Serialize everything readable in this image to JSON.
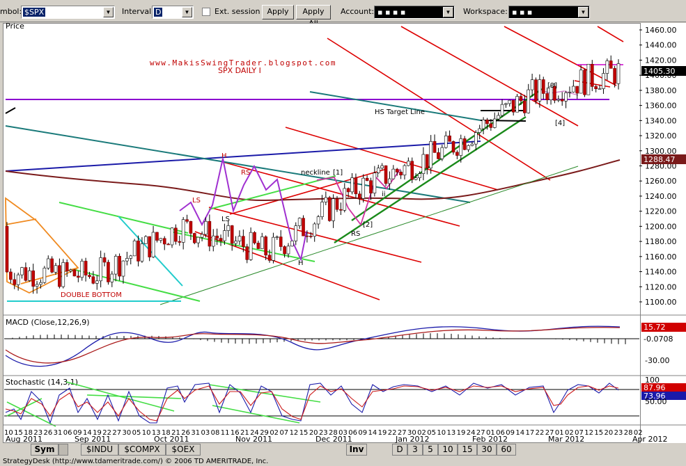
{
  "toolbar": {
    "symbol_label": "mbol:",
    "symbol_value": "$SPX",
    "interval_label": "Interval:",
    "interval_value": "D",
    "ext_session_label": "Ext. session",
    "apply_label": "Apply",
    "apply_all_label": "Apply All",
    "account_label": "Account:",
    "account_value": "▪ ▪ ▪ ▪",
    "workspace_label": "Workspace:",
    "workspace_value": "▪ ▪ ▪"
  },
  "chart": {
    "price_label": "Price",
    "blog_text": "www.MakisSwingTrader.blogspot.com",
    "chart_title": "SPX DAILY I",
    "double_bottom_text": "DOUBLE BOTTOM",
    "hs_target_text": "HS Target Line",
    "neckline_text": "neckline",
    "pattern_labels": [
      "H",
      "LS",
      "RS",
      "LS",
      "H",
      "RS",
      "[1]",
      "[2]",
      "[3]",
      "[4]",
      "i",
      "ii"
    ],
    "price_badges": {
      "last": "1405.30",
      "ma": "1288.47"
    },
    "macd_label": "MACD (Close,12,26,9)",
    "macd_badges": [
      "15.72",
      "-0.0708"
    ],
    "macd_ticks": [
      "-30.00"
    ],
    "stoch_label": "Stochastic (14,3,1)",
    "stoch_badges": [
      "87.96",
      "73.96"
    ],
    "stoch_ticks": [
      "100",
      "50.00"
    ],
    "x_day_labels": [
      "10",
      "15",
      "18",
      "23",
      "26",
      "31",
      "06",
      "09",
      "14",
      "19",
      "22",
      "27",
      "30",
      "05",
      "10",
      "13",
      "18",
      "21",
      "26",
      "31",
      "03",
      "08",
      "11",
      "16",
      "21",
      "24",
      "29",
      "02",
      "07",
      "12",
      "15",
      "20",
      "23",
      "28",
      "03",
      "06",
      "09",
      "14",
      "19",
      "22",
      "27",
      "30",
      "02",
      "05",
      "10",
      "13",
      "19",
      "24",
      "27",
      "01",
      "06",
      "09",
      "14",
      "17",
      "22",
      "27",
      "01",
      "02",
      "07",
      "12",
      "15",
      "20",
      "23",
      "28",
      "02"
    ],
    "x_month_labels": [
      "Aug 2011",
      "Sep 2011",
      "Oct 2011",
      "Nov 2011",
      "Dec 2011",
      "Jan 2012",
      "Feb 2012",
      "Mar 2012",
      "Apr 2012"
    ]
  },
  "chart_data": {
    "type": "candlestick",
    "title": "SPX DAILY I",
    "ylabel": "Price",
    "ylim": [
      1085,
      1470
    ],
    "yticks": [
      1100,
      1120,
      1140,
      1160,
      1180,
      1200,
      1220,
      1240,
      1260,
      1280,
      1300,
      1320,
      1340,
      1360,
      1380,
      1400,
      1420,
      1440,
      1460
    ],
    "x": [
      "Aug 2011",
      "Sep 2011",
      "Oct 2011",
      "Nov 2011",
      "Dec 2011",
      "Jan 2012",
      "Feb 2012",
      "Mar 2012"
    ],
    "close": [
      1140,
      1135,
      1200,
      1165,
      1250,
      1300,
      1375,
      1405
    ],
    "series": [
      {
        "name": "",
        "values": [
          1140,
          1135,
          1200,
          1165,
          1250,
          1300,
          1375,
          1405
        ]
      }
    ],
    "last_price": 1405.3,
    "moving_average": 1288.47
  },
  "tabs": {
    "sym": "Sym",
    "items": [
      "$INDU",
      "$COMPX",
      "$OEX"
    ],
    "inv": "Inv",
    "intervals": [
      "D",
      "3",
      "5",
      "10",
      "15",
      "30",
      "60"
    ]
  },
  "status": {
    "text": "StrategyDesk (http://www.tdameritrade.com/) © 2006 TD AMERITRADE, Inc."
  },
  "colors": {
    "accent": "#0a246a",
    "red_channel": "#cc0000",
    "green_channel": "#33cc33",
    "purple": "#8800cc",
    "ma_brown": "#8b1a1a"
  }
}
